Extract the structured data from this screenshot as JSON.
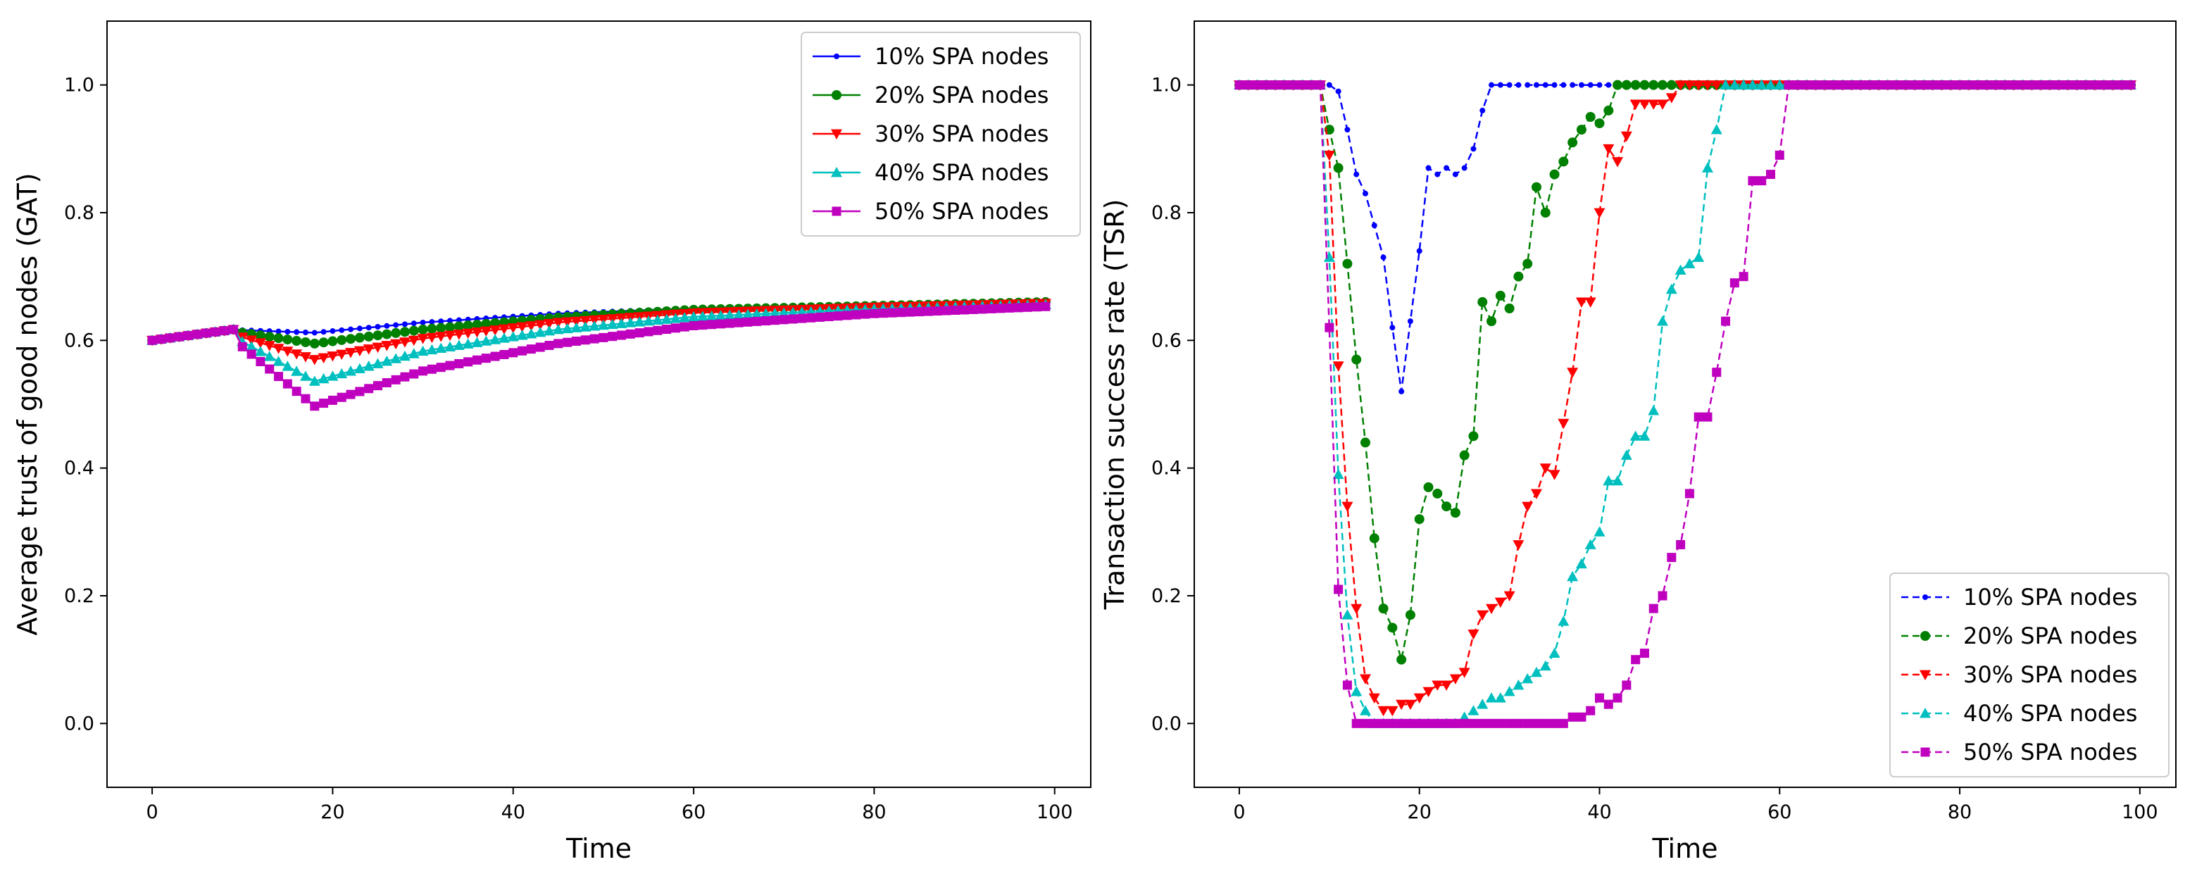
{
  "chart_data": [
    {
      "type": "line",
      "title": "",
      "xlabel": "Time",
      "ylabel": "Average trust of good nodes (GAT)",
      "xlim": [
        -5,
        104
      ],
      "ylim": [
        -0.1,
        1.1
      ],
      "xticks": [
        0,
        20,
        40,
        60,
        80,
        100
      ],
      "yticks": [
        0.0,
        0.2,
        0.4,
        0.6,
        0.8,
        1.0
      ],
      "grid": false,
      "legend_position": "top-right",
      "line_style": "solid",
      "series": [
        {
          "name": "10% SPA nodes",
          "color": "#0000ff",
          "marker": "point",
          "points": [
            [
              0,
              0.6
            ],
            [
              9,
              0.617
            ],
            [
              10,
              0.616
            ],
            [
              18,
              0.612
            ],
            [
              30,
              0.628
            ],
            [
              45,
              0.642
            ],
            [
              60,
              0.65
            ],
            [
              80,
              0.655
            ],
            [
              99,
              0.66
            ]
          ]
        },
        {
          "name": "20% SPA nodes",
          "color": "#008000",
          "marker": "circle",
          "points": [
            [
              0,
              0.6
            ],
            [
              9,
              0.617
            ],
            [
              10,
              0.612
            ],
            [
              18,
              0.595
            ],
            [
              30,
              0.617
            ],
            [
              45,
              0.636
            ],
            [
              60,
              0.648
            ],
            [
              80,
              0.654
            ],
            [
              99,
              0.66
            ]
          ]
        },
        {
          "name": "30% SPA nodes",
          "color": "#ff0000",
          "marker": "triangle-down",
          "points": [
            [
              0,
              0.6
            ],
            [
              9,
              0.617
            ],
            [
              10,
              0.605
            ],
            [
              18,
              0.57
            ],
            [
              30,
              0.603
            ],
            [
              45,
              0.628
            ],
            [
              60,
              0.643
            ],
            [
              80,
              0.652
            ],
            [
              99,
              0.658
            ]
          ]
        },
        {
          "name": "40% SPA nodes",
          "color": "#00bfbf",
          "marker": "triangle-up",
          "points": [
            [
              0,
              0.6
            ],
            [
              9,
              0.617
            ],
            [
              10,
              0.598
            ],
            [
              18,
              0.536
            ],
            [
              30,
              0.583
            ],
            [
              45,
              0.617
            ],
            [
              60,
              0.637
            ],
            [
              80,
              0.649
            ],
            [
              99,
              0.656
            ]
          ]
        },
        {
          "name": "50% SPA nodes",
          "color": "#bf00bf",
          "marker": "square",
          "points": [
            [
              0,
              0.6
            ],
            [
              9,
              0.617
            ],
            [
              10,
              0.59
            ],
            [
              18,
              0.497
            ],
            [
              30,
              0.552
            ],
            [
              45,
              0.595
            ],
            [
              60,
              0.623
            ],
            [
              80,
              0.642
            ],
            [
              99,
              0.653
            ]
          ]
        }
      ]
    },
    {
      "type": "line",
      "title": "",
      "xlabel": "Time",
      "ylabel": "Transaction success rate (TSR)",
      "xlim": [
        -5,
        104
      ],
      "ylim": [
        -0.1,
        1.1
      ],
      "xticks": [
        0,
        20,
        40,
        60,
        80,
        100
      ],
      "yticks": [
        0.0,
        0.2,
        0.4,
        0.6,
        0.8,
        1.0
      ],
      "grid": false,
      "legend_position": "bottom-right",
      "line_style": "dashed",
      "series": [
        {
          "name": "10% SPA nodes",
          "color": "#0000ff",
          "marker": "point",
          "points": [
            [
              0,
              1.0
            ],
            [
              9,
              1.0
            ],
            [
              10,
              1.0
            ],
            [
              11,
              0.99
            ],
            [
              12,
              0.93
            ],
            [
              13,
              0.86
            ],
            [
              14,
              0.83
            ],
            [
              15,
              0.78
            ],
            [
              16,
              0.73
            ],
            [
              17,
              0.62
            ],
            [
              18,
              0.52
            ],
            [
              19,
              0.63
            ],
            [
              20,
              0.74
            ],
            [
              21,
              0.87
            ],
            [
              22,
              0.86
            ],
            [
              23,
              0.87
            ],
            [
              24,
              0.86
            ],
            [
              25,
              0.87
            ],
            [
              26,
              0.9
            ],
            [
              27,
              0.96
            ],
            [
              28,
              1.0
            ],
            [
              99,
              1.0
            ]
          ]
        },
        {
          "name": "20% SPA nodes",
          "color": "#008000",
          "marker": "circle",
          "points": [
            [
              0,
              1.0
            ],
            [
              9,
              1.0
            ],
            [
              10,
              0.93
            ],
            [
              11,
              0.87
            ],
            [
              12,
              0.72
            ],
            [
              13,
              0.57
            ],
            [
              14,
              0.44
            ],
            [
              15,
              0.29
            ],
            [
              16,
              0.18
            ],
            [
              17,
              0.15
            ],
            [
              18,
              0.1
            ],
            [
              19,
              0.17
            ],
            [
              20,
              0.32
            ],
            [
              21,
              0.37
            ],
            [
              22,
              0.36
            ],
            [
              23,
              0.34
            ],
            [
              24,
              0.33
            ],
            [
              25,
              0.42
            ],
            [
              26,
              0.45
            ],
            [
              27,
              0.66
            ],
            [
              28,
              0.63
            ],
            [
              29,
              0.67
            ],
            [
              30,
              0.65
            ],
            [
              31,
              0.7
            ],
            [
              32,
              0.72
            ],
            [
              33,
              0.84
            ],
            [
              34,
              0.8
            ],
            [
              35,
              0.86
            ],
            [
              36,
              0.88
            ],
            [
              37,
              0.91
            ],
            [
              38,
              0.93
            ],
            [
              39,
              0.95
            ],
            [
              40,
              0.94
            ],
            [
              41,
              0.96
            ],
            [
              42,
              1.0
            ],
            [
              99,
              1.0
            ]
          ]
        },
        {
          "name": "30% SPA nodes",
          "color": "#ff0000",
          "marker": "triangle-down",
          "points": [
            [
              0,
              1.0
            ],
            [
              9,
              1.0
            ],
            [
              10,
              0.89
            ],
            [
              11,
              0.56
            ],
            [
              12,
              0.34
            ],
            [
              13,
              0.18
            ],
            [
              14,
              0.07
            ],
            [
              15,
              0.04
            ],
            [
              16,
              0.02
            ],
            [
              17,
              0.02
            ],
            [
              18,
              0.03
            ],
            [
              19,
              0.03
            ],
            [
              20,
              0.04
            ],
            [
              21,
              0.05
            ],
            [
              22,
              0.06
            ],
            [
              23,
              0.06
            ],
            [
              24,
              0.07
            ],
            [
              25,
              0.08
            ],
            [
              26,
              0.14
            ],
            [
              27,
              0.17
            ],
            [
              28,
              0.18
            ],
            [
              29,
              0.19
            ],
            [
              30,
              0.2
            ],
            [
              31,
              0.28
            ],
            [
              32,
              0.34
            ],
            [
              33,
              0.36
            ],
            [
              34,
              0.4
            ],
            [
              35,
              0.39
            ],
            [
              36,
              0.47
            ],
            [
              37,
              0.55
            ],
            [
              38,
              0.66
            ],
            [
              39,
              0.66
            ],
            [
              40,
              0.8
            ],
            [
              41,
              0.9
            ],
            [
              42,
              0.88
            ],
            [
              43,
              0.92
            ],
            [
              44,
              0.97
            ],
            [
              45,
              0.97
            ],
            [
              46,
              0.97
            ],
            [
              47,
              0.97
            ],
            [
              48,
              0.98
            ],
            [
              49,
              1.0
            ],
            [
              99,
              1.0
            ]
          ]
        },
        {
          "name": "40% SPA nodes",
          "color": "#00bfbf",
          "marker": "triangle-up",
          "points": [
            [
              0,
              1.0
            ],
            [
              9,
              1.0
            ],
            [
              10,
              0.73
            ],
            [
              11,
              0.39
            ],
            [
              12,
              0.17
            ],
            [
              13,
              0.05
            ],
            [
              14,
              0.02
            ],
            [
              15,
              0.0
            ],
            [
              24,
              0.0
            ],
            [
              25,
              0.01
            ],
            [
              26,
              0.02
            ],
            [
              27,
              0.03
            ],
            [
              28,
              0.04
            ],
            [
              29,
              0.04
            ],
            [
              30,
              0.05
            ],
            [
              31,
              0.06
            ],
            [
              32,
              0.07
            ],
            [
              33,
              0.08
            ],
            [
              34,
              0.09
            ],
            [
              35,
              0.11
            ],
            [
              36,
              0.16
            ],
            [
              37,
              0.23
            ],
            [
              38,
              0.25
            ],
            [
              39,
              0.28
            ],
            [
              40,
              0.3
            ],
            [
              41,
              0.38
            ],
            [
              42,
              0.38
            ],
            [
              43,
              0.42
            ],
            [
              44,
              0.45
            ],
            [
              45,
              0.45
            ],
            [
              46,
              0.49
            ],
            [
              47,
              0.63
            ],
            [
              48,
              0.68
            ],
            [
              49,
              0.71
            ],
            [
              50,
              0.72
            ],
            [
              51,
              0.73
            ],
            [
              52,
              0.87
            ],
            [
              53,
              0.93
            ],
            [
              54,
              1.0
            ],
            [
              99,
              1.0
            ]
          ]
        },
        {
          "name": "50% SPA nodes",
          "color": "#bf00bf",
          "marker": "square",
          "points": [
            [
              0,
              1.0
            ],
            [
              9,
              1.0
            ],
            [
              10,
              0.62
            ],
            [
              11,
              0.21
            ],
            [
              12,
              0.06
            ],
            [
              13,
              0.0
            ],
            [
              35,
              0.0
            ],
            [
              36,
              0.0
            ],
            [
              37,
              0.01
            ],
            [
              38,
              0.01
            ],
            [
              39,
              0.02
            ],
            [
              40,
              0.04
            ],
            [
              41,
              0.03
            ],
            [
              42,
              0.04
            ],
            [
              43,
              0.06
            ],
            [
              44,
              0.1
            ],
            [
              45,
              0.11
            ],
            [
              46,
              0.18
            ],
            [
              47,
              0.2
            ],
            [
              48,
              0.26
            ],
            [
              49,
              0.28
            ],
            [
              50,
              0.36
            ],
            [
              51,
              0.48
            ],
            [
              52,
              0.48
            ],
            [
              53,
              0.55
            ],
            [
              54,
              0.63
            ],
            [
              55,
              0.69
            ],
            [
              56,
              0.7
            ],
            [
              57,
              0.85
            ],
            [
              58,
              0.85
            ],
            [
              59,
              0.86
            ],
            [
              60,
              0.89
            ],
            [
              61,
              1.0
            ],
            [
              99,
              1.0
            ]
          ]
        }
      ]
    }
  ]
}
